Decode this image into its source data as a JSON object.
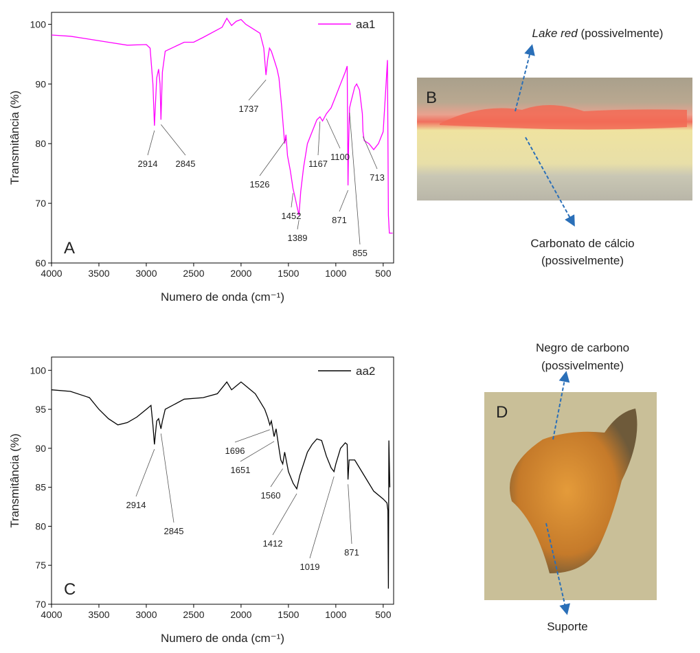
{
  "chart_data": [
    {
      "type": "line",
      "panel_label": "A",
      "xlabel": "Numero de onda (cm⁻¹)",
      "ylabel": "Transmitância (%)",
      "xlim": [
        4000,
        390
      ],
      "ylim": [
        60,
        102
      ],
      "xticks": [
        4000,
        3500,
        3000,
        2500,
        2000,
        1500,
        1000,
        500
      ],
      "yticks": [
        60,
        70,
        80,
        90,
        100
      ],
      "x": [
        4000,
        3800,
        3600,
        3400,
        3200,
        3000,
        2960,
        2930,
        2914,
        2890,
        2870,
        2855,
        2845,
        2830,
        2800,
        2600,
        2500,
        2400,
        2200,
        2150,
        2100,
        2050,
        2000,
        1950,
        1900,
        1850,
        1800,
        1760,
        1737,
        1720,
        1700,
        1680,
        1650,
        1620,
        1600,
        1570,
        1540,
        1526,
        1510,
        1480,
        1452,
        1430,
        1410,
        1389,
        1370,
        1340,
        1300,
        1250,
        1200,
        1167,
        1140,
        1100,
        1050,
        1000,
        950,
        900,
        880,
        871,
        865,
        855,
        840,
        800,
        780,
        750,
        720,
        713,
        700,
        650,
        600,
        550,
        500,
        470,
        455,
        445,
        435,
        400
      ],
      "series": [
        {
          "name": "aa1",
          "color": "#ff00ff",
          "values": [
            98.2,
            98,
            97.5,
            97,
            96.5,
            96.6,
            96,
            90,
            83,
            91,
            92.5,
            90,
            84,
            92,
            95.5,
            97,
            97,
            97.8,
            99.5,
            101,
            99.8,
            100.5,
            100.8,
            100,
            99.5,
            99,
            98.5,
            96,
            91.5,
            94,
            96,
            95.5,
            94,
            92.5,
            91,
            86,
            80,
            81.5,
            78,
            75.5,
            72.5,
            71,
            69.5,
            68,
            72,
            76,
            80,
            82,
            84,
            84.5,
            83.8,
            85,
            86,
            88,
            90,
            92,
            93,
            73,
            80,
            86,
            87,
            89.5,
            90,
            89,
            85,
            82,
            80.5,
            80,
            79,
            80,
            82,
            90,
            94,
            68,
            65,
            65
          ]
        }
      ],
      "peaks": [
        2914,
        2845,
        1737,
        1526,
        1452,
        1389,
        1167,
        1100,
        871,
        855,
        713
      ]
    },
    {
      "type": "line",
      "panel_label": "C",
      "xlabel": "Numero de onda (cm⁻¹)",
      "ylabel": "Transmitância (%)",
      "xlim": [
        4000,
        390
      ],
      "ylim": [
        70,
        101.7
      ],
      "xticks": [
        4000,
        3500,
        3000,
        2500,
        2000,
        1500,
        1000,
        500
      ],
      "yticks": [
        70,
        75,
        80,
        85,
        90,
        95,
        100
      ],
      "x": [
        4000,
        3800,
        3600,
        3500,
        3400,
        3300,
        3200,
        3100,
        3000,
        2950,
        2930,
        2914,
        2890,
        2870,
        2845,
        2830,
        2800,
        2600,
        2400,
        2250,
        2150,
        2100,
        2050,
        2000,
        1950,
        1900,
        1850,
        1800,
        1750,
        1720,
        1696,
        1680,
        1651,
        1630,
        1600,
        1580,
        1560,
        1540,
        1500,
        1450,
        1412,
        1380,
        1300,
        1250,
        1200,
        1150,
        1100,
        1050,
        1019,
        1000,
        950,
        900,
        880,
        871,
        860,
        800,
        700,
        600,
        500,
        460,
        450,
        445,
        440,
        430
      ],
      "series": [
        {
          "name": "aa2",
          "color": "#000000",
          "values": [
            97.5,
            97.3,
            96.5,
            95,
            93.8,
            93,
            93.3,
            94,
            95,
            95.5,
            93,
            90.5,
            93.5,
            93.8,
            92.5,
            93.5,
            95,
            96.3,
            96.5,
            97,
            98.5,
            97.5,
            98,
            98.5,
            98,
            97.5,
            97,
            96,
            95,
            94,
            93,
            93.5,
            91.5,
            92.5,
            90,
            88.5,
            88,
            89.5,
            87,
            85.5,
            84.8,
            86.5,
            89.5,
            90.5,
            91.2,
            91,
            89,
            87.5,
            87,
            88,
            90,
            90.7,
            90.5,
            86,
            88.5,
            88.5,
            86.5,
            84.5,
            83.5,
            83,
            82,
            72,
            91,
            85
          ]
        }
      ],
      "peaks": [
        2914,
        2845,
        1696,
        1651,
        1560,
        1412,
        1019,
        871
      ]
    }
  ],
  "photos": [
    {
      "label": "B",
      "top_label": {
        "italic": "Lake red",
        "text": "(possivelmente)"
      },
      "bottom_label": [
        "Carbonato de cálcio",
        "(possivelmente)"
      ]
    },
    {
      "label": "D",
      "top_label": [
        "Negro de carbono",
        "(possivelmente)"
      ],
      "bottom_label": [
        "Suporte"
      ]
    }
  ]
}
